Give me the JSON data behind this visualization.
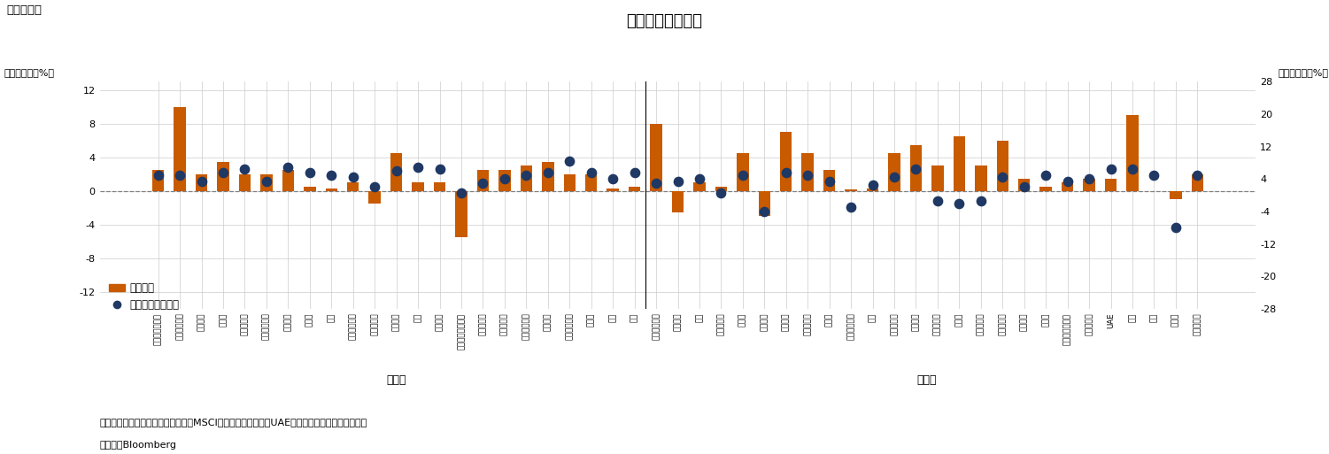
{
  "title": "各国の株価変動率",
  "fig_label": "（図表４）",
  "ylabel_left": "（前月末比、%）",
  "ylabel_right": "（前年末比、%）",
  "note1": "（注）各国指数は現地通貨ベースのMSCI構成指数、ただし、UAEはサウジ・タダウル全株指数",
  "note2": "（資料）Bloomberg",
  "advanced_label": "先進国",
  "emerging_label": "新興国",
  "legend_bar": "前月末比",
  "legend_dot": "前年末比（右軸）",
  "countries": [
    "オーストラリア",
    "オーストリア",
    "ベルギー",
    "カナダ",
    "デンマーク",
    "フィンランド",
    "フランス",
    "ドイツ",
    "韓国",
    "アイルランド",
    "イスラエル",
    "イタリア",
    "日本",
    "オランダ",
    "ニュージーランド",
    "ノルウェー",
    "ポルトガル",
    "シンガポール",
    "スペイン",
    "スウェーデン",
    "スイス",
    "英国",
    "米国",
    "アルゼンチン",
    "ブラジル",
    "チリ",
    "コロンビア",
    "チェコ",
    "エジプト",
    "ギリシャ",
    "ハンガリー",
    "インド",
    "インドネシア",
    "韓国",
    "マレーシア",
    "メキシコ",
    "パキスタン",
    "ペルー",
    "フィリピン",
    "ポーランド",
    "カタール",
    "ロシア",
    "サウジアラビア",
    "南アフリカ",
    "UAE",
    "台湾",
    "タイ",
    "トルコ",
    "クウェート"
  ],
  "bar_values": [
    2.5,
    10.0,
    2.0,
    3.5,
    2.0,
    2.0,
    2.5,
    0.5,
    0.3,
    1.0,
    -1.5,
    4.5,
    1.0,
    1.0,
    -5.5,
    2.5,
    2.5,
    3.0,
    3.5,
    2.0,
    2.0,
    0.3,
    0.5,
    8.0,
    -2.5,
    1.0,
    0.5,
    4.5,
    -3.0,
    7.0,
    4.5,
    2.5,
    0.2,
    0.3,
    4.5,
    5.5,
    3.0,
    6.5,
    3.0,
    6.0,
    1.5,
    0.5,
    1.0,
    1.5,
    1.5,
    9.0,
    0.0,
    -1.0,
    2.0
  ],
  "dot_values": [
    5.0,
    5.0,
    3.5,
    5.5,
    6.5,
    3.5,
    7.0,
    5.5,
    5.0,
    4.5,
    2.0,
    6.0,
    7.0,
    6.5,
    0.5,
    3.0,
    4.0,
    5.0,
    5.5,
    8.5,
    5.5,
    4.0,
    5.5,
    3.0,
    3.5,
    4.0,
    0.5,
    5.0,
    -4.0,
    5.5,
    5.0,
    3.5,
    -3.0,
    2.5,
    4.5,
    6.5,
    -1.5,
    -2.0,
    -1.5,
    4.5,
    2.0,
    5.0,
    3.5,
    4.0,
    6.5,
    6.5,
    5.0,
    -8.0,
    5.0
  ],
  "n_advanced": 23,
  "bar_color": "#C85A00",
  "dot_color": "#1F3864",
  "ylim_left": [
    -14,
    13
  ],
  "ylim_right": [
    -28,
    26
  ],
  "yticks_left": [
    -12,
    -8,
    -4,
    0,
    4,
    8,
    12
  ],
  "yticks_right": [
    -28,
    -20,
    -12,
    -4,
    4,
    12,
    20,
    28
  ],
  "background_color": "#ffffff",
  "grid_color": "#cccccc",
  "title_fontsize": 13,
  "tick_fontsize": 8,
  "bar_width": 0.55
}
